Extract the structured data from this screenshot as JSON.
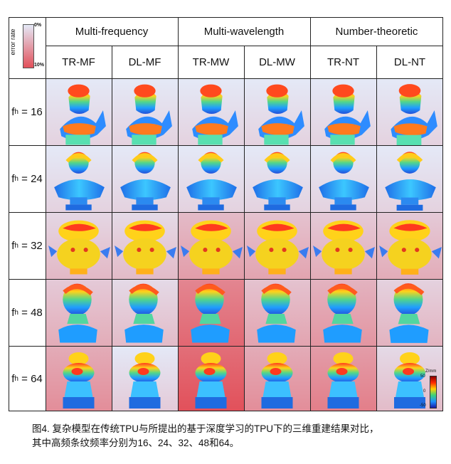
{
  "error_scale": {
    "title": "error rate",
    "min_label": "0%",
    "max_label": "10%",
    "color_low": "#e4e9f7",
    "color_high": "#e2505a"
  },
  "groups": [
    {
      "label": "Multi-frequency"
    },
    {
      "label": "Multi-wavelength"
    },
    {
      "label": "Number-theoretic"
    }
  ],
  "methods": [
    "TR-MF",
    "DL-MF",
    "TR-MW",
    "DL-MW",
    "TR-NT",
    "DL-NT"
  ],
  "rows": [
    {
      "label_main": "f",
      "label_sub": "h",
      "label_rest": " = 16",
      "model": "bust-a",
      "errors": [
        0.05,
        0.05,
        0.05,
        0.05,
        0.05,
        0.05
      ]
    },
    {
      "label_main": "f",
      "label_sub": "h",
      "label_rest": " = 24",
      "model": "bust-b",
      "errors": [
        0.05,
        0.05,
        0.05,
        0.05,
        0.05,
        0.05
      ]
    },
    {
      "label_main": "f",
      "label_sub": "h",
      "label_rest": " = 32",
      "model": "toy",
      "errors": [
        0.22,
        0.2,
        0.4,
        0.35,
        0.3,
        0.3
      ]
    },
    {
      "label_main": "f",
      "label_sub": "h",
      "label_rest": " = 48",
      "model": "david",
      "errors": [
        0.3,
        0.2,
        0.75,
        0.35,
        0.45,
        0.25
      ]
    },
    {
      "label_main": "f",
      "label_sub": "h",
      "label_rest": " = 64",
      "model": "chess",
      "errors": [
        0.5,
        0.1,
        0.9,
        0.5,
        0.6,
        0.2
      ]
    }
  ],
  "depth_colorbar": {
    "unit": "Z/mm",
    "ticks": [
      "50",
      "0",
      "-50"
    ],
    "colors": [
      "#8b0000",
      "#ff2a00",
      "#ffd200",
      "#3cd27a",
      "#1e90ff",
      "#1a1aa6"
    ]
  },
  "caption": {
    "line1": "图4. 复杂模型在传统TPU与所提出的基于深度学习的TPU下的三维重建结果对比，",
    "line2": "其中高频条纹频率分别为16、24、32、48和64。"
  }
}
